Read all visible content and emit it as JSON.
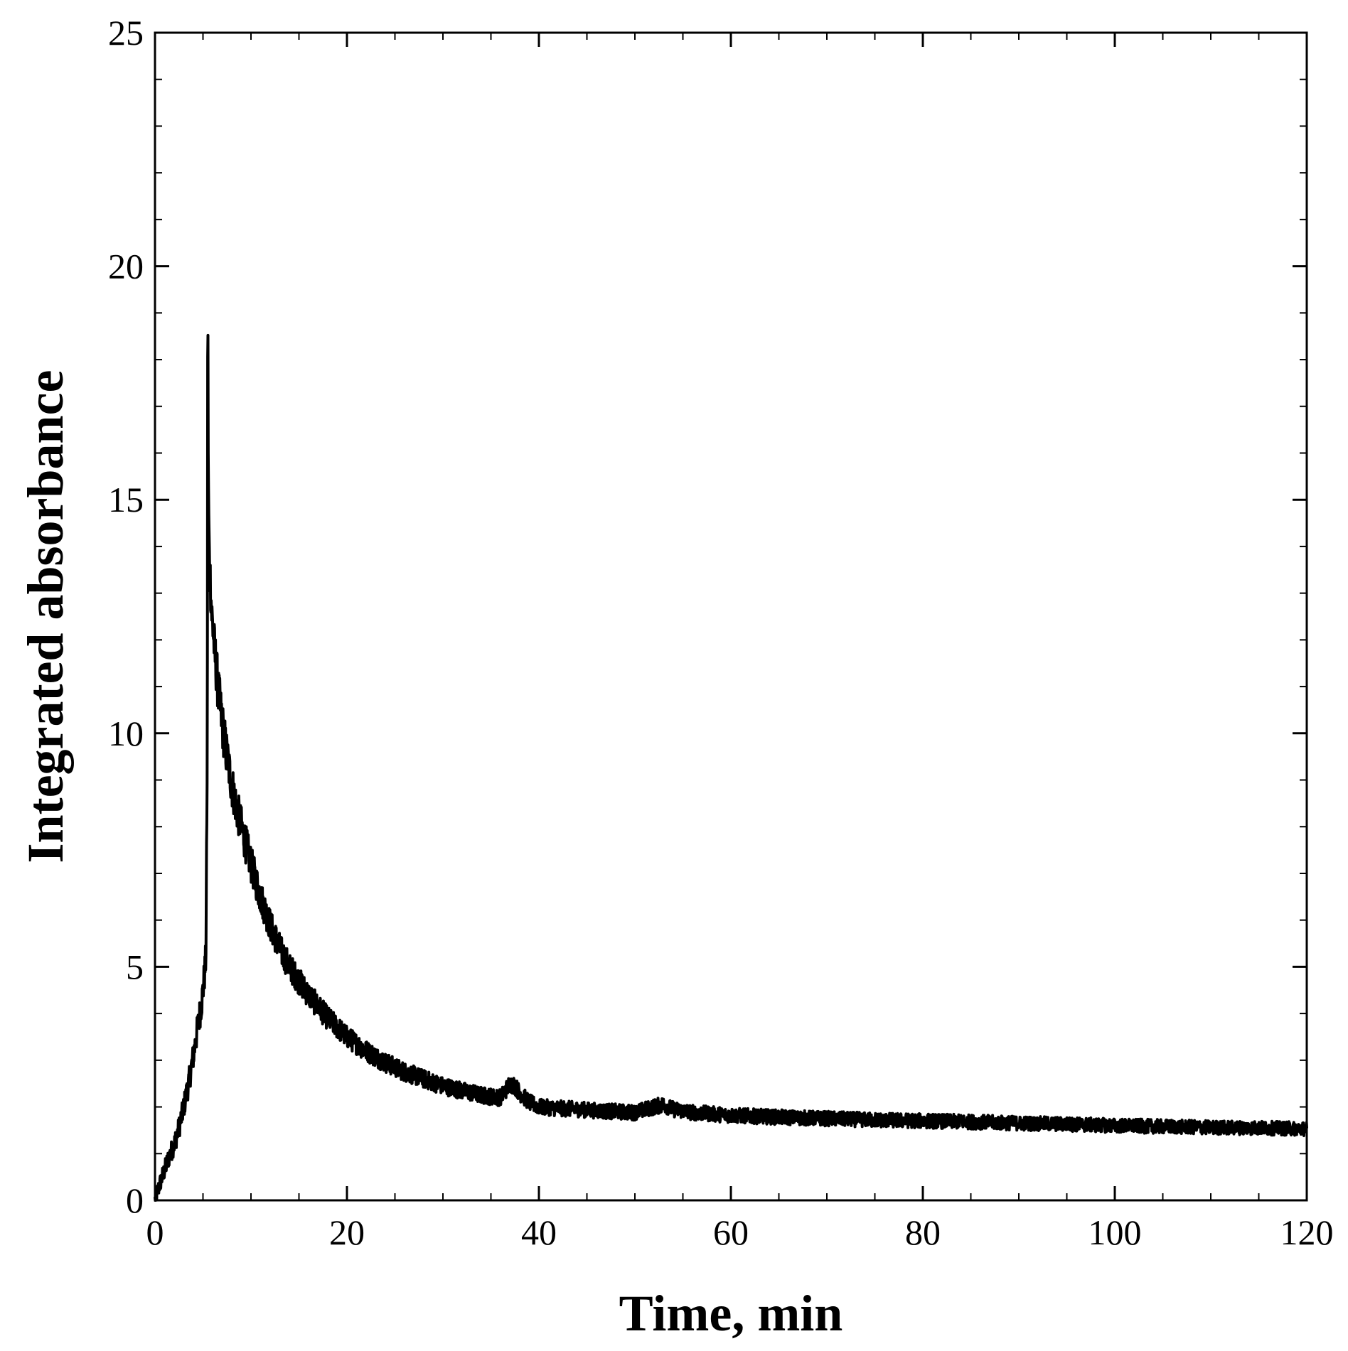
{
  "chart_data": {
    "type": "line",
    "xlabel": "Time, min",
    "ylabel": "Integrated absorbance",
    "xlim": [
      0,
      120
    ],
    "ylim": [
      0,
      25
    ],
    "x_ticks": [
      0,
      20,
      40,
      60,
      80,
      100,
      120
    ],
    "y_ticks": [
      0,
      5,
      10,
      15,
      20,
      25
    ],
    "x_minor_step": 5,
    "y_minor_step": 1,
    "grid": false,
    "line_color": "#000000",
    "series": [
      {
        "x": [
          0,
          0.5,
          1,
          1.5,
          2,
          2.5,
          3,
          3.5,
          4,
          4.3,
          4.6,
          4.9,
          5.1,
          5.3,
          5.45,
          5.5,
          5.55,
          5.6,
          5.7,
          5.9,
          6.2,
          6.6,
          7,
          7.5,
          8,
          8.5,
          9,
          10,
          11,
          12,
          13,
          14,
          15,
          16,
          17,
          18,
          19,
          20,
          22,
          24,
          26,
          28,
          30,
          32,
          34,
          36,
          37,
          37.5,
          38,
          39,
          40,
          42,
          44,
          46,
          48,
          50,
          52,
          53,
          54,
          56,
          58,
          60,
          65,
          70,
          75,
          80,
          85,
          90,
          95,
          100,
          105,
          110,
          115,
          120
        ],
        "y": [
          0,
          0.35,
          0.65,
          0.95,
          1.2,
          1.55,
          2.0,
          2.5,
          3.1,
          3.5,
          3.9,
          4.3,
          4.7,
          5.2,
          9.5,
          20.2,
          16.0,
          14.8,
          13.6,
          12.6,
          11.8,
          10.9,
          10.2,
          9.5,
          8.9,
          8.4,
          8.0,
          7.2,
          6.5,
          5.9,
          5.4,
          5.0,
          4.7,
          4.4,
          4.15,
          3.9,
          3.7,
          3.5,
          3.2,
          2.95,
          2.75,
          2.6,
          2.45,
          2.35,
          2.25,
          2.2,
          2.5,
          2.45,
          2.3,
          2.1,
          2.0,
          1.97,
          1.95,
          1.92,
          1.9,
          1.88,
          2.0,
          2.05,
          1.95,
          1.88,
          1.85,
          1.82,
          1.78,
          1.75,
          1.72,
          1.7,
          1.68,
          1.65,
          1.63,
          1.6,
          1.58,
          1.56,
          1.55,
          1.53
        ]
      }
    ]
  }
}
